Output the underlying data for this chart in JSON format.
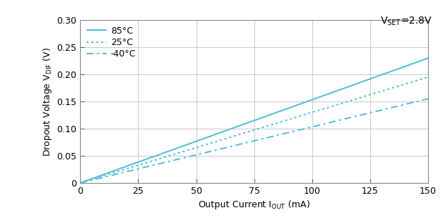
{
  "xlim": [
    0,
    150
  ],
  "ylim": [
    0,
    0.3
  ],
  "xticks": [
    0,
    25,
    50,
    75,
    100,
    125,
    150
  ],
  "yticks": [
    0,
    0.05,
    0.1,
    0.15,
    0.2,
    0.25,
    0.3
  ],
  "ytick_labels": [
    "0",
    "0.05",
    "0.10",
    "0.15",
    "0.20",
    "0.25",
    "0.30"
  ],
  "line_color": "#4DBED8",
  "series": [
    {
      "label": "85°C",
      "slope": 0.001533,
      "style": "solid",
      "lw": 1.4
    },
    {
      "label": "25°C",
      "slope": 0.0013,
      "style": "dotted",
      "lw": 1.4
    },
    {
      "label": "-40°C",
      "slope": 0.001033,
      "style": "dashed",
      "lw": 1.4
    }
  ],
  "background_color": "#ffffff",
  "grid_color": "#c0c0c0",
  "vset_text": "V",
  "vset_sub": "SET",
  "vset_val": "=2.8V",
  "ylabel_main": "Dropout Voltage V",
  "ylabel_sub": "DIF",
  "ylabel_unit": " (V)",
  "xlabel_main": "Output Current I",
  "xlabel_sub": "OUT",
  "xlabel_unit": " (mA)",
  "annotation_fontsize": 10,
  "label_fontsize": 9,
  "tick_fontsize": 9,
  "legend_fontsize": 9
}
